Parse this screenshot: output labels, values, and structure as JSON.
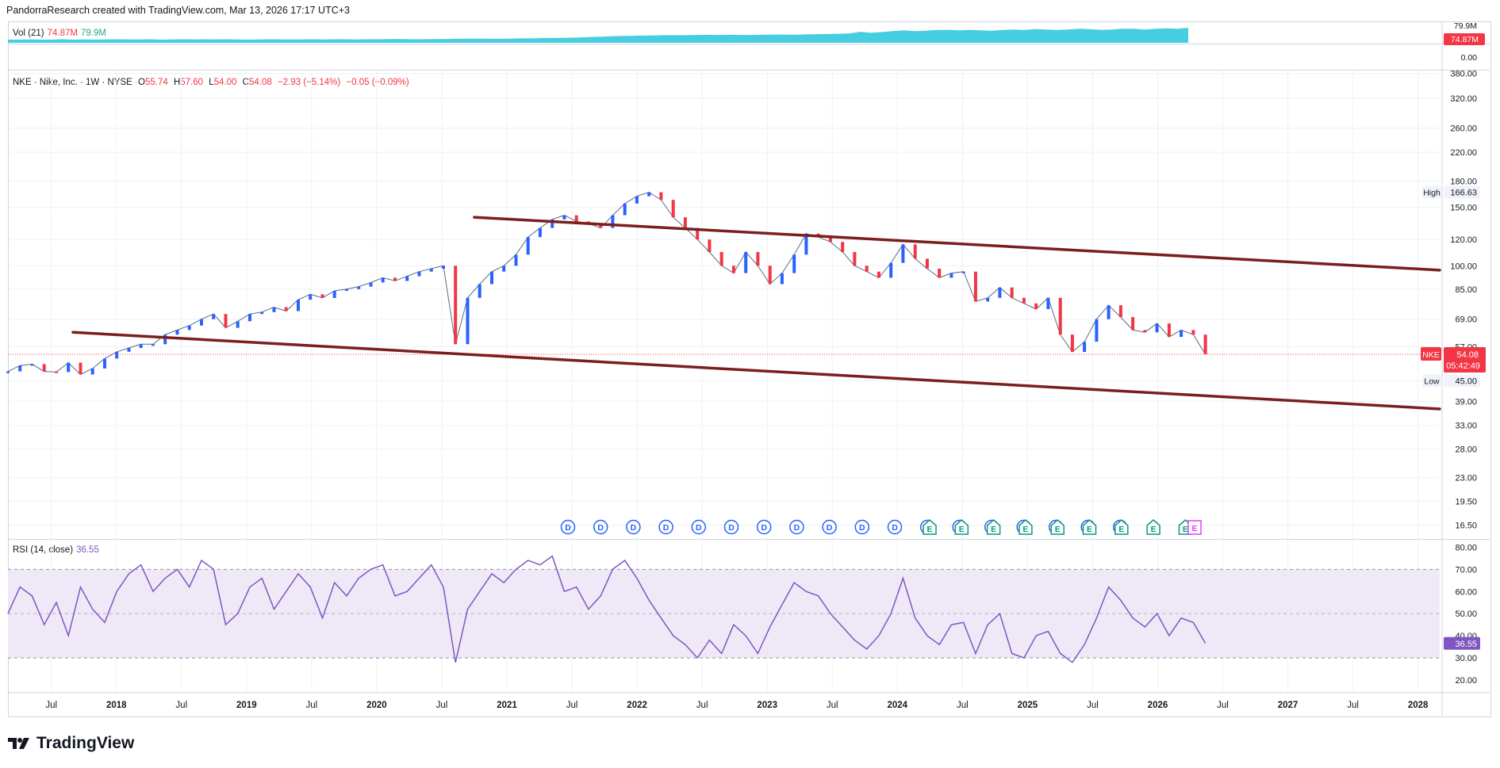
{
  "header": {
    "text": "PandorraResearch created with TradingView.com, Mar 13, 2026 17:17 UTC+3"
  },
  "volume": {
    "label": "Vol (21)",
    "value": "74.87M",
    "ma": "79.9M",
    "axis_top": "79.9M",
    "axis_badge": "74.87M",
    "axis_zero": "0.00"
  },
  "price_legend": {
    "symbol": "NKE · Nike, Inc. · 1W · NYSE",
    "o_label": "O",
    "o": "55.74",
    "h_label": "H",
    "h": "57.60",
    "l_label": "L",
    "l": "54.00",
    "c_label": "C",
    "c": "54.08",
    "change": "−2.93 (−5.14%)",
    "ext": "−0.05 (−0.09%)"
  },
  "badges": {
    "high_label": "High",
    "high_value": "166.63",
    "low_label": "Low",
    "low_value": "45.00",
    "last_symbol": "NKE",
    "last_value": "54.08",
    "countdown": "05:42:49"
  },
  "rsi": {
    "label": "RSI (14, close)",
    "value": "36.55"
  },
  "colors": {
    "up": "#2962ff",
    "down": "#f23645",
    "trendline": "#7b1e1e",
    "rsi_line": "#7e57c2",
    "rsi_band": "#ede7f6",
    "volume": "#26c6da",
    "grid": "#eef0f3"
  },
  "events": {
    "dividend": [
      "D",
      "D",
      "D",
      "D",
      "D",
      "D",
      "D",
      "D",
      "D",
      "D",
      "D",
      "D",
      "D",
      "D",
      "D",
      "D",
      "D",
      "D"
    ],
    "earnings": [
      "E",
      "E",
      "E",
      "E",
      "E",
      "E",
      "E",
      "E",
      "E"
    ],
    "future_earnings": "E"
  },
  "brand": "TradingView",
  "chart_data": [
    {
      "type": "line",
      "series": [
        {
          "name": "NKE",
          "close": [
            48.0,
            50.0,
            50.5,
            48.0,
            47.8,
            51.0,
            47.0,
            49.0,
            52.5,
            55.0,
            56.5,
            58.0,
            58.0,
            62.0,
            64.0,
            66.0,
            69.0,
            71.5,
            65.0,
            68.0,
            71.5,
            72.5,
            75.0,
            73.0,
            79.0,
            82.0,
            80.0,
            84.0,
            85.0,
            86.5,
            89.0,
            92.0,
            90.0,
            93.0,
            96.0,
            98.0,
            100.0,
            58.0,
            80.0,
            88.0,
            96.0,
            100.0,
            108.0,
            122.0,
            130.0,
            138.0,
            142.0,
            136.0,
            134.0,
            130.0,
            142.0,
            154.0,
            162.0,
            166.63,
            158.0,
            140.0,
            130.0,
            120.0,
            110.0,
            100.0,
            95.0,
            110.0,
            100.0,
            88.0,
            95.0,
            108.0,
            125.0,
            122.0,
            118.0,
            110.0,
            100.0,
            96.0,
            92.0,
            102.0,
            116.0,
            105.0,
            98.0,
            92.0,
            95.0,
            96.0,
            78.0,
            80.0,
            86.0,
            80.0,
            77.0,
            74.0,
            80.0,
            62.0,
            55.0,
            59.0,
            69.0,
            76.0,
            70.0,
            64.0,
            63.0,
            67.0,
            61.0,
            64.0,
            62.0,
            54.08
          ]
        }
      ],
      "x_ticks": [
        "Jul",
        "2018",
        "Jul",
        "2019",
        "Jul",
        "2020",
        "Jul",
        "2021",
        "Jul",
        "2022",
        "Jul",
        "2023",
        "Jul",
        "2024",
        "Jul",
        "2025",
        "Jul",
        "2026",
        "Jul",
        "2027",
        "Jul",
        "2028"
      ],
      "y_ticks": [
        "380.00",
        "320.00",
        "260.00",
        "220.00",
        "180.00",
        "150.00",
        "120.00",
        "100.00",
        "85.00",
        "69.00",
        "57.00",
        "45.00",
        "39.00",
        "33.00",
        "28.00",
        "23.00",
        "19.50",
        "16.50"
      ],
      "y_scale": "log",
      "xlim": [
        "2017-03",
        "2028-03"
      ],
      "ylim": [
        15,
        390
      ],
      "trendlines": [
        {
          "name": "upper channel",
          "from": [
            "2020-10",
            140
          ],
          "to": [
            "2028-03",
            97
          ]
        },
        {
          "name": "lower channel",
          "from": [
            "2017-09",
            63
          ],
          "to": [
            "2028-03",
            37
          ]
        }
      ],
      "high": 166.63,
      "low": 45.0,
      "last": 54.08
    },
    {
      "type": "line",
      "series": [
        {
          "name": "RSI",
          "values": [
            50,
            62,
            58,
            45,
            55,
            40,
            62,
            52,
            46,
            60,
            68,
            72,
            60,
            66,
            70,
            62,
            74,
            70,
            45,
            50,
            62,
            66,
            52,
            60,
            68,
            62,
            48,
            64,
            58,
            66,
            70,
            72,
            58,
            60,
            66,
            72,
            62,
            28,
            52,
            60,
            68,
            64,
            70,
            74,
            72,
            76,
            60,
            62,
            52,
            58,
            70,
            74,
            66,
            56,
            48,
            40,
            36,
            30,
            38,
            32,
            45,
            40,
            32,
            44,
            54,
            64,
            60,
            58,
            50,
            44,
            38,
            34,
            40,
            50,
            66,
            48,
            40,
            36,
            45,
            46,
            32,
            45,
            50,
            32,
            30,
            40,
            42,
            32,
            28,
            36,
            48,
            62,
            56,
            48,
            44,
            50,
            40,
            48,
            46,
            36.55
          ]
        }
      ],
      "y_ticks": [
        "80.00",
        "70.00",
        "60.00",
        "50.00",
        "40.00",
        "30.00",
        "20.00"
      ],
      "ylim": [
        15,
        83
      ],
      "bands": [
        30,
        50,
        70
      ]
    },
    {
      "type": "bar",
      "series": [
        {
          "name": "Vol",
          "values": [
            16,
            16,
            17,
            16,
            16,
            18,
            16,
            17,
            16,
            17,
            18,
            17,
            17,
            18,
            16,
            17,
            18,
            17,
            18,
            17,
            18,
            17,
            16,
            17,
            18,
            17,
            17,
            17,
            18,
            17,
            18,
            18,
            17,
            18,
            18,
            19,
            19,
            18,
            18,
            19,
            19,
            20,
            20,
            21,
            20,
            20,
            21,
            22,
            22,
            24,
            24,
            25,
            26,
            28,
            30,
            32,
            34,
            35,
            36,
            37,
            38,
            38,
            38,
            39,
            40,
            39,
            40,
            39,
            39,
            40,
            41,
            41,
            40,
            42,
            43,
            44,
            45,
            47,
            55,
            50,
            54,
            58,
            62,
            58,
            60,
            64,
            65,
            62,
            64,
            62,
            60,
            64,
            66,
            64,
            68,
            66,
            64,
            66,
            70,
            68,
            65,
            66,
            70,
            70,
            66,
            70,
            72,
            70,
            74.87
          ]
        }
      ],
      "ylim": [
        0,
        95
      ]
    }
  ]
}
